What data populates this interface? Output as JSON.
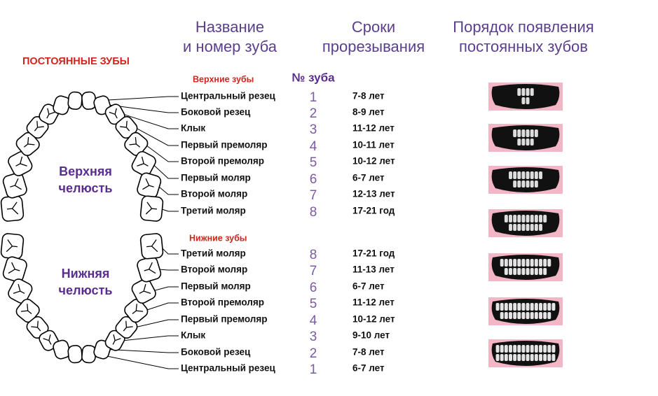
{
  "header": {
    "title": "ПОСТОЯННЫЕ ЗУБЫ",
    "columns": [
      {
        "lines": [
          "Название",
          "и номер зуба"
        ]
      },
      {
        "lines": [
          "Сроки",
          "прорезывания"
        ]
      },
      {
        "lines": [
          "Порядок появления",
          "постоянных зубов"
        ]
      }
    ],
    "number_label": "№ зуба"
  },
  "jaws": {
    "upper": [
      "Верхняя",
      "челюсть"
    ],
    "lower": [
      "Нижняя",
      "челюсть"
    ]
  },
  "upper": {
    "title": "Верхние зубы",
    "rows": [
      [
        "Центральный резец",
        1,
        "7-8 лет"
      ],
      [
        "Боковой резец",
        2,
        "8-9 лет"
      ],
      [
        "Клык",
        3,
        "11-12 лет"
      ],
      [
        "Первый премоляр",
        4,
        "10-11 лет"
      ],
      [
        "Второй премоляр",
        5,
        "10-12 лет"
      ],
      [
        "Первый моляр",
        6,
        "6-7 лет"
      ],
      [
        "Второй моляр",
        7,
        "12-13 лет"
      ],
      [
        "Третий моляр",
        8,
        "17-21 год"
      ]
    ]
  },
  "lower": {
    "title": "Нижние зубы",
    "rows": [
      [
        "Третий моляр",
        8,
        "17-21 год"
      ],
      [
        "Второй моляр",
        7,
        "11-13 лет"
      ],
      [
        "Первый моляр",
        6,
        "6-7 лет"
      ],
      [
        "Второй премоляр",
        5,
        "11-12 лет"
      ],
      [
        "Первый премоляр",
        4,
        "10-12 лет"
      ],
      [
        "Клык",
        3,
        "9-10 лет"
      ],
      [
        "Боковой резец",
        2,
        "7-8 лет"
      ],
      [
        "Центральный резец",
        1,
        "6-7 лет"
      ]
    ]
  }
}
